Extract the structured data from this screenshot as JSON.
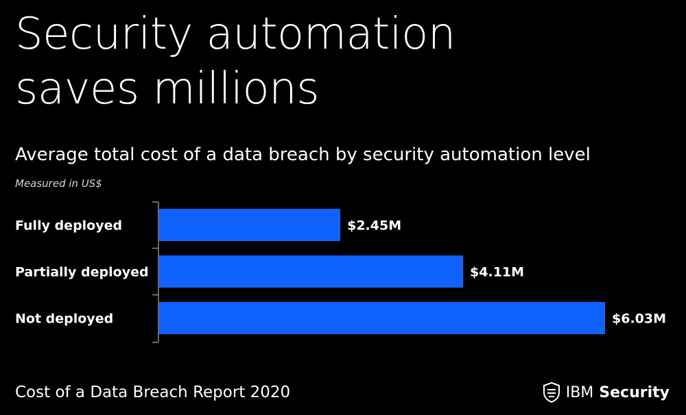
{
  "headline": {
    "line1": "Security automation",
    "line2": "saves millions"
  },
  "subtitle": "Average total cost of a data breach by security automation level",
  "unit_note": "Measured in US$",
  "footer": "Cost of a Data Breach Report 2020",
  "brand": {
    "ibm": "IBM",
    "security": "Security",
    "icon": "shield-icon"
  },
  "colors": {
    "background": "#000000",
    "bar": "#0f62fe",
    "text": "#ffffff",
    "axis": "#8d8d8d"
  },
  "chart_data": {
    "type": "bar",
    "orientation": "horizontal",
    "title": "Average total cost of a data breach by security automation level",
    "subtitle": "Measured in US$",
    "categories": [
      "Fully deployed",
      "Partially deployed",
      "Not deployed"
    ],
    "values": [
      2.45,
      4.11,
      6.03
    ],
    "value_labels": [
      "$2.45M",
      "$4.11M",
      "$6.03M"
    ],
    "xlim": [
      0,
      6.03
    ],
    "grid": false,
    "legend": "none"
  }
}
